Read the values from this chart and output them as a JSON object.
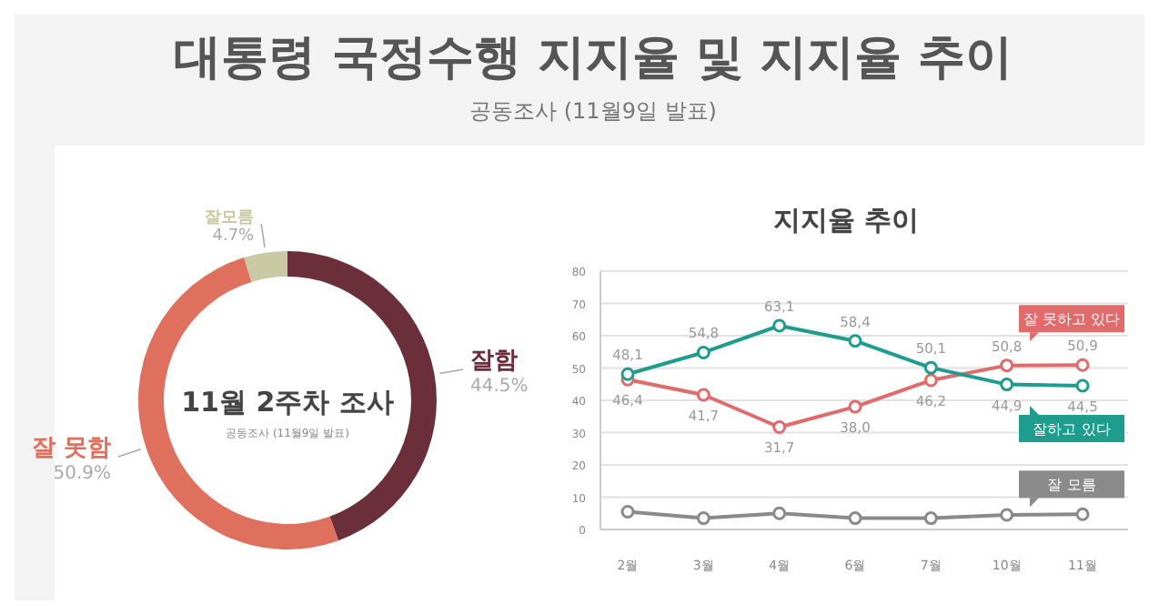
{
  "chart_data": [
    {
      "type": "donut",
      "title": "대통령 국정수행 지지율 및 지지율 추이",
      "subtitle": "공동조사 (11월9일 발표)",
      "categories": [
        "잘함",
        "잘 못함",
        "잘모름"
      ],
      "values": [
        44.5,
        50.9,
        4.7
      ],
      "colors": [
        "#6b2f3c",
        "#e0705e",
        "#c9c9a3"
      ],
      "value_labels": [
        "44.5%",
        "50.9%",
        "4.7%"
      ],
      "annotations": [
        "11월 2주차 조사",
        "공동조사 (11월9일 발표)"
      ]
    },
    {
      "type": "line",
      "title": "지지율 추이",
      "categories": [
        "2월",
        "3월",
        "4월",
        "6월",
        "7월",
        "10월",
        "11월"
      ],
      "series": [
        {
          "name": "잘 못하고 있다",
          "color": "#e06b6b",
          "values": [
            46.4,
            41.7,
            31.7,
            38.0,
            46.2,
            50.8,
            50.9
          ],
          "value_labels": [
            "46,4",
            "41,7",
            "31,7",
            "38,0",
            "46,2",
            "50,8",
            "50,9"
          ]
        },
        {
          "name": "잘하고 있다",
          "color": "#1e9c8e",
          "values": [
            48.1,
            54.8,
            63.1,
            58.4,
            50.1,
            44.9,
            44.5
          ],
          "value_labels": [
            "48,1",
            "54,8",
            "63,1",
            "58,4",
            "50,1",
            "44,9",
            "44,5"
          ]
        },
        {
          "name": "잘 모름",
          "color": "#8a8a8a",
          "values": [
            5.5,
            3.5,
            5.0,
            3.5,
            3.5,
            4.5,
            4.7
          ]
        }
      ],
      "ylim": [
        0,
        80
      ],
      "yticks": [
        0,
        10,
        20,
        30,
        40,
        50,
        60,
        70,
        80
      ],
      "grid": "y",
      "marker": "circle",
      "line_style": "solid",
      "legend": "right"
    }
  ]
}
